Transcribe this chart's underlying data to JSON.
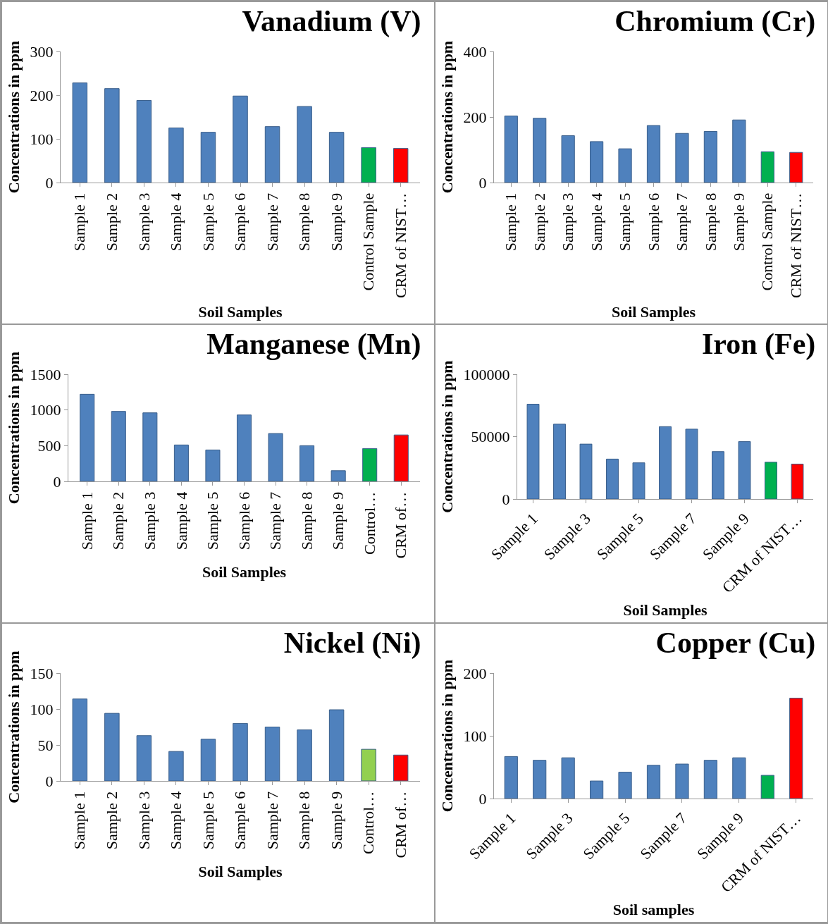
{
  "chart_data": [
    {
      "type": "bar",
      "title": "Vanadium (V)",
      "xlabel": "Soil Samples",
      "ylabel": "Concentrations in ppm",
      "categories": [
        "Sample 1",
        "Sample 2",
        "Sample 3",
        "Sample 4",
        "Sample 5",
        "Sample 6",
        "Sample 7",
        "Sample 8",
        "Sample 9",
        "Control Sample",
        "CRM of NIST…"
      ],
      "values": [
        228,
        215,
        188,
        125,
        115,
        198,
        128,
        174,
        115,
        80,
        78
      ],
      "colors": [
        "#4f81bd",
        "#4f81bd",
        "#4f81bd",
        "#4f81bd",
        "#4f81bd",
        "#4f81bd",
        "#4f81bd",
        "#4f81bd",
        "#4f81bd",
        "#00b050",
        "#ff0000"
      ],
      "ylim": [
        0,
        300
      ],
      "yticks": [
        0,
        100,
        200,
        300
      ],
      "grid": false
    },
    {
      "type": "bar",
      "title": "Chromium (Cr)",
      "xlabel": "Soil Samples",
      "ylabel": "Concentrations in ppm",
      "categories": [
        "Sample 1",
        "Sample 2",
        "Sample 3",
        "Sample 4",
        "Sample 5",
        "Sample 6",
        "Sample 7",
        "Sample 8",
        "Sample 9",
        "Control Sample",
        "CRM of NIST…"
      ],
      "values": [
        203,
        196,
        143,
        125,
        103,
        174,
        150,
        156,
        191,
        94,
        92
      ],
      "colors": [
        "#4f81bd",
        "#4f81bd",
        "#4f81bd",
        "#4f81bd",
        "#4f81bd",
        "#4f81bd",
        "#4f81bd",
        "#4f81bd",
        "#4f81bd",
        "#00b050",
        "#ff0000"
      ],
      "ylim": [
        0,
        400
      ],
      "yticks": [
        0,
        200,
        400
      ],
      "grid": false
    },
    {
      "type": "bar",
      "title": "Manganese (Mn)",
      "xlabel": "Soil Samples",
      "ylabel": "Concentrations in ppm",
      "categories": [
        "Sample 1",
        "Sample 2",
        "Sample 3",
        "Sample 4",
        "Sample 5",
        "Sample 6",
        "Sample 7",
        "Sample 8",
        "Sample 9",
        "Control…",
        "CRM of…"
      ],
      "values": [
        1220,
        980,
        960,
        510,
        440,
        930,
        670,
        500,
        150,
        460,
        650
      ],
      "colors": [
        "#4f81bd",
        "#4f81bd",
        "#4f81bd",
        "#4f81bd",
        "#4f81bd",
        "#4f81bd",
        "#4f81bd",
        "#4f81bd",
        "#4f81bd",
        "#00b050",
        "#ff0000"
      ],
      "ylim": [
        0,
        1500
      ],
      "yticks": [
        0,
        500,
        1000,
        1500
      ],
      "grid": false
    },
    {
      "type": "bar",
      "title": "Iron (Fe)",
      "xlabel": "Soil Samples",
      "ylabel": "Concentrations in ppm",
      "categories": [
        "Sample 1",
        null,
        "Sample 3",
        null,
        "Sample 5",
        null,
        "Sample 7",
        null,
        "Sample 9",
        null,
        "CRM of NIST…"
      ],
      "values": [
        76000,
        60000,
        44000,
        32000,
        29000,
        58000,
        56000,
        38000,
        46000,
        29500,
        28000
      ],
      "colors": [
        "#4f81bd",
        "#4f81bd",
        "#4f81bd",
        "#4f81bd",
        "#4f81bd",
        "#4f81bd",
        "#4f81bd",
        "#4f81bd",
        "#4f81bd",
        "#00b050",
        "#ff0000"
      ],
      "ylim": [
        0,
        100000
      ],
      "yticks": [
        0,
        50000,
        100000
      ],
      "grid": false
    },
    {
      "type": "bar",
      "title": "Nickel (Ni)",
      "xlabel": "Soil Samples",
      "ylabel": "Concentrations in ppm",
      "categories": [
        "Sample 1",
        "Sample 2",
        "Sample 3",
        "Sample 4",
        "Sample 5",
        "Sample 6",
        "Sample 7",
        "Sample 8",
        "Sample 9",
        "Control…",
        "CRM of…"
      ],
      "values": [
        114,
        94,
        63,
        41,
        58,
        80,
        75,
        71,
        99,
        44,
        36
      ],
      "colors": [
        "#4f81bd",
        "#4f81bd",
        "#4f81bd",
        "#4f81bd",
        "#4f81bd",
        "#4f81bd",
        "#4f81bd",
        "#4f81bd",
        "#4f81bd",
        "#92d050",
        "#ff0000"
      ],
      "ylim": [
        0,
        150
      ],
      "yticks": [
        0,
        50,
        100,
        150
      ],
      "grid": false
    },
    {
      "type": "bar",
      "title": "Copper (Cu)",
      "xlabel": "Soil samples",
      "ylabel": "Concentrations in ppm",
      "categories": [
        "Sample 1",
        null,
        "Sample 3",
        null,
        "Sample 5",
        null,
        "Sample 7",
        null,
        "Sample 9",
        null,
        "CRM of NIST…"
      ],
      "values": [
        67,
        61,
        65,
        28,
        42,
        53,
        55,
        61,
        65,
        37,
        160
      ],
      "colors": [
        "#4f81bd",
        "#4f81bd",
        "#4f81bd",
        "#4f81bd",
        "#4f81bd",
        "#4f81bd",
        "#4f81bd",
        "#4f81bd",
        "#4f81bd",
        "#00b050",
        "#ff0000"
      ],
      "ylim": [
        0,
        200
      ],
      "yticks": [
        0,
        100,
        200
      ],
      "grid": false
    }
  ]
}
